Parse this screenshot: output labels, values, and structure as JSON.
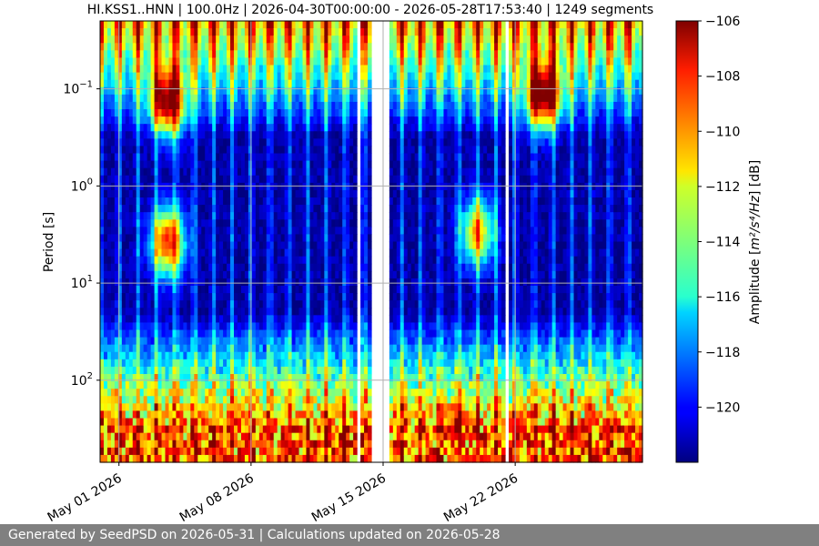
{
  "chart_data": {
    "type": "heatmap",
    "title": "HI.KSS1..HNN | 100.0Hz | 2026-04-30T00:00:00 - 2026-05-28T17:53:40 | 1249 segments",
    "xlabel": "",
    "ylabel": "Period [s]",
    "y_scale": "log",
    "y_inverted": true,
    "ylim": [
      0.02,
      700
    ],
    "y_ticks": [
      {
        "value": 0.1,
        "base": "10",
        "exp": "−1"
      },
      {
        "value": 1,
        "base": "10",
        "exp": "0"
      },
      {
        "value": 10,
        "base": "10",
        "exp": "1"
      },
      {
        "value": 100,
        "base": "10",
        "exp": "2"
      }
    ],
    "x_range": [
      "2026-04-30T00:00:00",
      "2026-05-28T17:53:40"
    ],
    "x_ticks": [
      "May 01 2026",
      "May 08 2026",
      "May 15 2026",
      "May 22 2026"
    ],
    "grid": true,
    "colormap": "jet",
    "colorbar": {
      "label_prefix": "Amplitude [",
      "label_unit_html": "m²/s⁴/Hz",
      "label_suffix": "] [dB]",
      "range": [
        -122,
        -106
      ],
      "ticks": [
        "−106",
        "−108",
        "−110",
        "−112",
        "−114",
        "−116",
        "−118",
        "−120"
      ]
    },
    "data_gaps": [
      {
        "start": "2026-05-13T13:00:00",
        "end": "2026-05-13T18:00:00"
      },
      {
        "start": "2026-05-14T07:00:00",
        "end": "2026-05-15T07:00:00"
      },
      {
        "start": "2026-05-21T12:00:00",
        "end": "2026-05-21T17:00:00"
      }
    ],
    "features": [
      {
        "name": "microseism-event-1",
        "center_day": 3.6,
        "period": 0.14,
        "level_db": -107
      },
      {
        "name": "microseism-event-2",
        "center_day": 3.6,
        "period": 3.8,
        "level_db": -107
      },
      {
        "name": "late-event",
        "center_day": 23.5,
        "period": 0.12,
        "level_db": -107
      },
      {
        "name": "late-event-secondary",
        "center_day": 20.0,
        "period": 3.0,
        "level_db": -110
      }
    ]
  },
  "footer": {
    "text": "Generated by SeedPSD on 2026-05-31 | Calculations updated on 2026-05-28"
  }
}
